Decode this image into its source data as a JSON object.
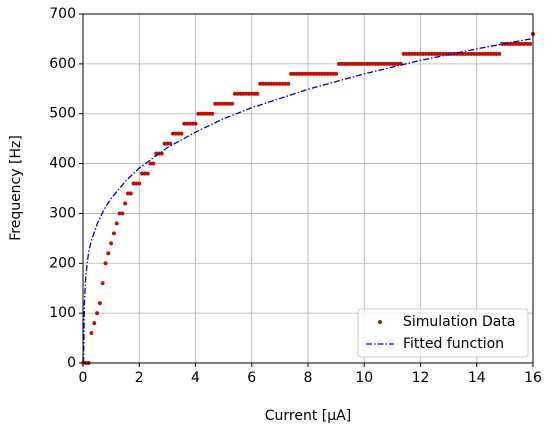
{
  "chart_data": {
    "type": "scatter",
    "xlabel": "Current [µA]",
    "ylabel": "Frequency [Hz]",
    "xlim": [
      0,
      16
    ],
    "ylim": [
      0,
      700
    ],
    "xticks": [
      0,
      2,
      4,
      6,
      8,
      10,
      12,
      14,
      16
    ],
    "yticks": [
      0,
      100,
      200,
      300,
      400,
      500,
      600,
      700
    ],
    "grid": true,
    "legend": "lower right",
    "series": [
      {
        "name": "Simulation Data",
        "color": "#e00000",
        "mode": "markers",
        "x": [
          0,
          0.1,
          0.2,
          0.3,
          0.4,
          0.5,
          0.6,
          0.7,
          0.8,
          0.9,
          1,
          1.1,
          1.2,
          1.3,
          1.4,
          1.5,
          1.6,
          1.7,
          1.8,
          1.9,
          2,
          2.1,
          2.2,
          2.3,
          2.4,
          2.5,
          2.6,
          2.7,
          2.8,
          2.9,
          3,
          3.1,
          3.2,
          3.3,
          3.4,
          3.5,
          3.6,
          3.7,
          3.8,
          3.9,
          4,
          4.1,
          4.2,
          4.3,
          4.4,
          4.5,
          4.6,
          4.7,
          4.8,
          4.9,
          5,
          5.1,
          5.2,
          5.3,
          5.4,
          5.5,
          5.6,
          5.7,
          5.8,
          5.9,
          6,
          6.1,
          6.2,
          6.3,
          6.4,
          6.5,
          6.6,
          6.7,
          6.8,
          6.9,
          7,
          7.1,
          7.2,
          7.3,
          7.4,
          7.5,
          7.6,
          7.7,
          7.8,
          7.9,
          8,
          8.1,
          8.2,
          8.3,
          8.4,
          8.5,
          8.6,
          8.7,
          8.8,
          8.9,
          9,
          9.1,
          9.2,
          9.3,
          9.4,
          9.5,
          9.6,
          9.7,
          9.8,
          9.9,
          10,
          10.1,
          10.2,
          10.3,
          10.4,
          10.5,
          10.6,
          10.7,
          10.8,
          10.9,
          11,
          11.1,
          11.2,
          11.3,
          11.4,
          11.5,
          11.6,
          11.7,
          11.8,
          11.9,
          12,
          12.1,
          12.2,
          12.3,
          12.4,
          12.5,
          12.6,
          12.7,
          12.8,
          12.9,
          13,
          13.1,
          13.2,
          13.3,
          13.4,
          13.5,
          13.6,
          13.7,
          13.8,
          13.9,
          14,
          14.1,
          14.2,
          14.3,
          14.4,
          14.5,
          14.6,
          14.7,
          14.8,
          14.9,
          15,
          15.1,
          15.2,
          15.3,
          15.4,
          15.5,
          15.6,
          15.7,
          15.8,
          15.9,
          16
        ],
        "values": [
          0,
          0,
          0,
          60,
          80,
          100,
          120,
          160,
          200,
          220,
          240,
          260,
          280,
          300,
          300,
          320,
          340,
          340,
          360,
          360,
          360,
          380,
          380,
          380,
          400,
          400,
          420,
          420,
          420,
          440,
          440,
          440,
          460,
          460,
          460,
          460,
          480,
          480,
          480,
          480,
          480,
          500,
          500,
          500,
          500,
          500,
          500,
          520,
          520,
          520,
          520,
          520,
          520,
          520,
          540,
          540,
          540,
          540,
          540,
          540,
          540,
          540,
          540,
          560,
          560,
          560,
          560,
          560,
          560,
          560,
          560,
          560,
          560,
          560,
          580,
          580,
          580,
          580,
          580,
          580,
          580,
          580,
          580,
          580,
          580,
          580,
          580,
          580,
          580,
          580,
          580,
          600,
          600,
          600,
          600,
          600,
          600,
          600,
          600,
          600,
          600,
          600,
          600,
          600,
          600,
          600,
          600,
          600,
          600,
          600,
          600,
          600,
          600,
          600,
          620,
          620,
          620,
          620,
          620,
          620,
          620,
          620,
          620,
          620,
          620,
          620,
          620,
          620,
          620,
          620,
          620,
          620,
          620,
          620,
          620,
          620,
          620,
          620,
          620,
          620,
          620,
          620,
          620,
          620,
          620,
          620,
          620,
          620,
          620,
          640,
          640,
          640,
          640,
          640,
          640,
          640,
          640,
          640,
          640,
          640,
          660
        ]
      },
      {
        "name": "Fitted function",
        "color": "#0000cc",
        "mode": "line",
        "x": [
          0.02,
          0.05,
          0.1,
          0.2,
          0.3,
          0.5,
          0.75,
          1,
          1.5,
          2,
          3,
          4,
          5,
          6,
          8,
          10,
          12,
          14,
          16
        ],
        "values": [
          0,
          120,
          175,
          223,
          246,
          278,
          308,
          330,
          364,
          391,
          432,
          463,
          490,
          512,
          549,
          580,
          607,
          630,
          651
        ]
      }
    ]
  }
}
